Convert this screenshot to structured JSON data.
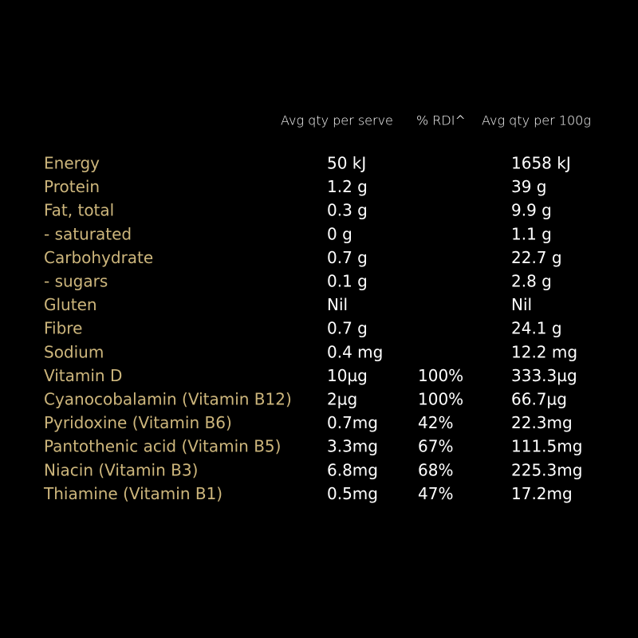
{
  "table": {
    "headers": [
      "Avg qty per serve",
      "% RDI^",
      "Avg qty per 100g"
    ],
    "rows": [
      {
        "nutrient": "Energy",
        "per_serve": "50 kJ",
        "per_100g": "1658 kJ"
      },
      {
        "nutrient": "Protein",
        "per_serve": "1.2 g",
        "per_100g": "39 g"
      },
      {
        "nutrient": "Fat, total",
        "per_serve": "0.3 g",
        "per_100g": "9.9 g"
      },
      {
        "nutrient": "- saturated",
        "per_serve": "0 g",
        "per_100g": "1.1 g"
      },
      {
        "nutrient": "Carbohydrate",
        "per_serve": "0.7 g",
        "per_100g": "22.7 g"
      },
      {
        "nutrient": "- sugars",
        "per_serve": "0.1 g",
        "per_100g": "2.8 g"
      },
      {
        "nutrient": "Gluten",
        "per_serve": "Nil",
        "per_100g": "Nil"
      },
      {
        "nutrient": "Fibre",
        "per_serve": "0.7 g",
        "per_100g": "24.1 g"
      },
      {
        "nutrient": "Sodium",
        "per_serve": "0.4 mg",
        "per_100g": "12.2 mg"
      },
      {
        "nutrient": "Vitamin D",
        "per_serve": "10µg",
        "rdi": "100%",
        "per_100g": "333.3µg"
      },
      {
        "nutrient": "Cyanocobalamin (Vitamin B12)",
        "per_serve": "2µg",
        "rdi": "100%",
        "per_100g": "66.7µg"
      },
      {
        "nutrient": "Pyridoxine (Vitamin B6)",
        "per_serve": "0.7mg",
        "rdi": "42%",
        "per_100g": "22.3mg"
      },
      {
        "nutrient": "Pantothenic acid (Vitamin B5)",
        "per_serve": "3.3mg",
        "rdi": "67%",
        "per_100g": "111.5mg"
      },
      {
        "nutrient": "Niacin (Vitamin B3)",
        "per_serve": "6.8mg",
        "rdi": "68%",
        "per_100g": "225.3mg"
      },
      {
        "nutrient": "Thiamine (Vitamin B1)",
        "per_serve": "0.5mg",
        "rdi": "47%",
        "per_100g": "17.2mg"
      }
    ]
  }
}
